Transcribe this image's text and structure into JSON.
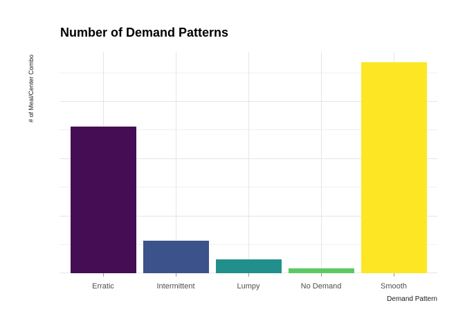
{
  "chart_data": {
    "type": "bar",
    "title": "Number of Demand Patterns",
    "xlabel": "Demand Pattern",
    "ylabel": "# of Meal/Center Combo",
    "categories": [
      "Erratic",
      "Intermittent",
      "Lumpy",
      "No Demand",
      "Smooth"
    ],
    "values": [
      1277,
      281,
      122,
      43,
      1840
    ],
    "bar_colors": [
      "#440D54",
      "#3B528B",
      "#21908C",
      "#5DC863",
      "#FDE725"
    ],
    "y_ticks": [
      0,
      500,
      1000,
      1500
    ],
    "y_minor_ticks": [
      250,
      750,
      1250,
      1750
    ],
    "ylim": [
      0,
      1932
    ],
    "grid": true,
    "legend": "none",
    "colors": {
      "background": "#FFFFFF",
      "grid_major": "#E5E5E5",
      "grid_minor": "#F0F0F0",
      "tick_label": "#4D4D4D",
      "tick_mark": "#999999",
      "title": "#000000",
      "axis_title": "#1A1A1A"
    }
  }
}
